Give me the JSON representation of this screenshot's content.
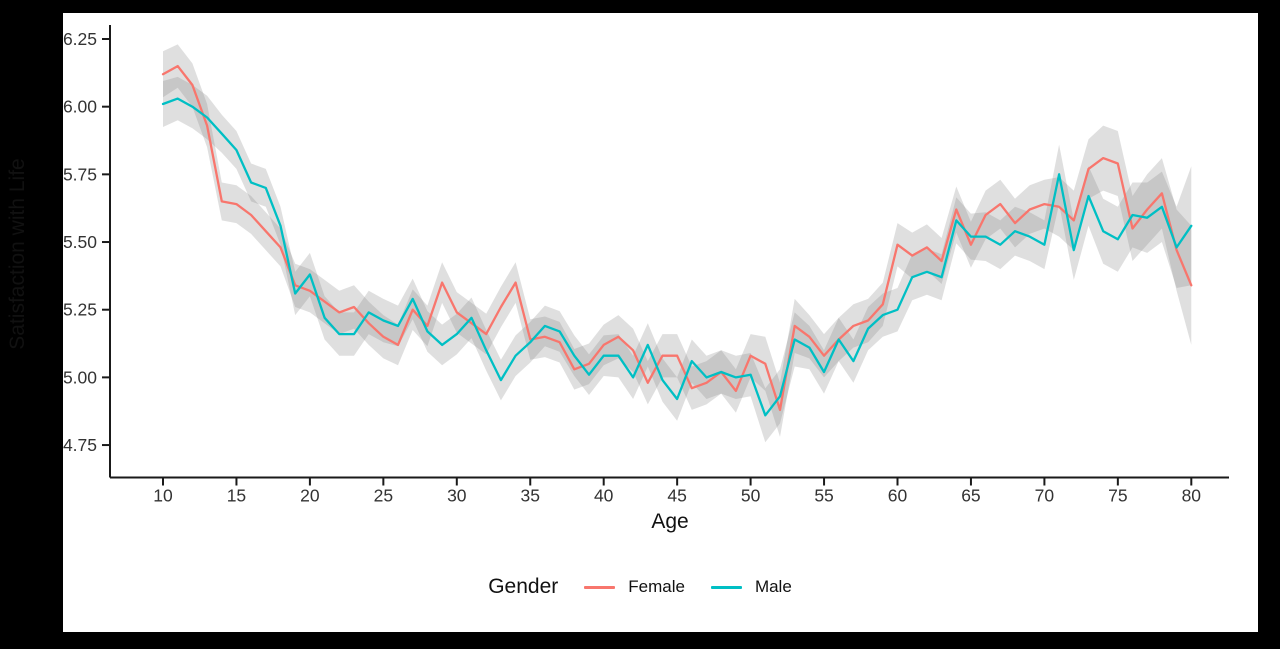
{
  "frame": {
    "background": "#000000",
    "panel_background": "#ffffff",
    "axis_color": "#1a1a1a",
    "tick_label_color": "#333333"
  },
  "chart_data": {
    "type": "line",
    "title": "",
    "xlabel": "Age",
    "ylabel": "Satisfaction with Life",
    "legend_title": "Gender",
    "legend_position": "bottom",
    "grid": false,
    "xlim": [
      6.8,
      82.6
    ],
    "ylim": [
      4.63,
      6.3
    ],
    "x_tick_values": [
      10,
      15,
      20,
      25,
      30,
      35,
      40,
      45,
      50,
      55,
      60,
      65,
      70,
      75,
      80
    ],
    "x_tick_labels": [
      "10",
      "15",
      "20",
      "25",
      "30",
      "35",
      "40",
      "45",
      "50",
      "55",
      "60",
      "65",
      "70",
      "75",
      "80"
    ],
    "y_tick_values": [
      4.75,
      5.0,
      5.25,
      5.5,
      5.75,
      6.0,
      6.25
    ],
    "y_tick_labels": [
      "4.75",
      "5.00",
      "5.25",
      "5.50",
      "5.75",
      "6.00",
      "6.25"
    ],
    "ages": [
      10,
      11,
      12,
      13,
      14,
      15,
      16,
      17,
      18,
      19,
      20,
      21,
      22,
      23,
      24,
      25,
      26,
      27,
      28,
      29,
      30,
      31,
      32,
      33,
      34,
      35,
      36,
      37,
      38,
      39,
      40,
      41,
      42,
      43,
      44,
      45,
      46,
      47,
      48,
      49,
      50,
      51,
      52,
      53,
      54,
      55,
      56,
      57,
      58,
      59,
      60,
      61,
      62,
      63,
      64,
      65,
      66,
      67,
      68,
      69,
      70,
      71,
      72,
      73,
      74,
      75,
      76,
      77,
      78,
      79,
      80
    ],
    "series": [
      {
        "name": "Female",
        "color": "#F8766D",
        "values": [
          6.12,
          6.15,
          6.08,
          5.93,
          5.65,
          5.64,
          5.6,
          5.54,
          5.48,
          5.34,
          5.32,
          5.28,
          5.24,
          5.26,
          5.2,
          5.15,
          5.12,
          5.25,
          5.19,
          5.35,
          5.24,
          5.2,
          5.16,
          5.26,
          5.35,
          5.14,
          5.15,
          5.13,
          5.03,
          5.05,
          5.12,
          5.15,
          5.1,
          4.98,
          5.08,
          5.08,
          4.96,
          4.98,
          5.02,
          4.95,
          5.08,
          5.05,
          4.88,
          5.19,
          5.15,
          5.08,
          5.14,
          5.19,
          5.21,
          5.27,
          5.49,
          5.45,
          5.48,
          5.43,
          5.62,
          5.49,
          5.6,
          5.64,
          5.57,
          5.62,
          5.64,
          5.63,
          5.58,
          5.77,
          5.81,
          5.79,
          5.55,
          5.62,
          5.68,
          5.47,
          5.34
        ]
      },
      {
        "name": "Male",
        "color": "#00BFC4",
        "values": [
          6.01,
          6.03,
          6.0,
          5.96,
          5.9,
          5.84,
          5.72,
          5.7,
          5.56,
          5.31,
          5.38,
          5.22,
          5.16,
          5.16,
          5.24,
          5.21,
          5.19,
          5.29,
          5.17,
          5.12,
          5.16,
          5.22,
          5.1,
          4.99,
          5.08,
          5.13,
          5.19,
          5.17,
          5.08,
          5.01,
          5.08,
          5.08,
          5.0,
          5.12,
          4.99,
          4.92,
          5.06,
          5.0,
          5.02,
          5.0,
          5.01,
          4.86,
          4.93,
          5.14,
          5.11,
          5.02,
          5.14,
          5.06,
          5.18,
          5.23,
          5.25,
          5.37,
          5.39,
          5.37,
          5.58,
          5.52,
          5.52,
          5.49,
          5.54,
          5.52,
          5.49,
          5.75,
          5.47,
          5.67,
          5.54,
          5.51,
          5.6,
          5.59,
          5.63,
          5.48,
          5.56
        ]
      }
    ],
    "band_halfwidth": [
      0.085,
      0.08,
      0.08,
      0.08,
      0.07,
      0.07,
      0.07,
      0.07,
      0.07,
      0.08,
      0.08,
      0.08,
      0.08,
      0.08,
      0.08,
      0.08,
      0.075,
      0.075,
      0.075,
      0.075,
      0.075,
      0.075,
      0.075,
      0.075,
      0.075,
      0.075,
      0.075,
      0.075,
      0.075,
      0.075,
      0.075,
      0.08,
      0.08,
      0.08,
      0.08,
      0.08,
      0.08,
      0.08,
      0.08,
      0.08,
      0.08,
      0.1,
      0.1,
      0.1,
      0.08,
      0.08,
      0.08,
      0.08,
      0.08,
      0.08,
      0.08,
      0.085,
      0.085,
      0.085,
      0.085,
      0.085,
      0.09,
      0.09,
      0.09,
      0.09,
      0.09,
      0.11,
      0.11,
      0.11,
      0.12,
      0.12,
      0.12,
      0.13,
      0.13,
      0.15,
      0.22
    ],
    "band_color": "#808080",
    "band_opacity": 0.25
  }
}
